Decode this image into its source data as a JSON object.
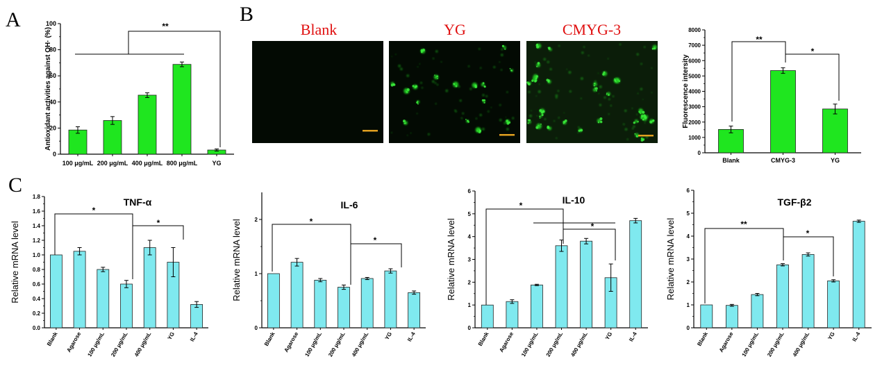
{
  "panel_letters": {
    "a": "A",
    "b": "B",
    "c": "C"
  },
  "micrograph_titles": [
    "Blank",
    "YG",
    "CMYG-3"
  ],
  "colors": {
    "green_bar": "#1fe61f",
    "cyan_bar": "#7fe9ef",
    "title_red": "#e01010",
    "scale_bar": "#e0a020",
    "micrograph_bg": "#030a03",
    "cell_glow": "#22c822"
  },
  "chart_data": [
    {
      "id": "A",
      "type": "bar",
      "categories": [
        "100 μg/mL",
        "200 μg/mL",
        "400 μg/mL",
        "800 μg/mL",
        "YG"
      ],
      "values": [
        18.5,
        25.8,
        45.2,
        68.8,
        3.2
      ],
      "errors": [
        2.5,
        3.0,
        1.8,
        1.8,
        0.8
      ],
      "ylabel": "Antioxidant activities against OH· (%)",
      "ylim": [
        0,
        100
      ],
      "yticks": [
        0,
        20,
        40,
        60,
        80,
        100
      ],
      "significance": [
        {
          "label": "**"
        }
      ]
    },
    {
      "id": "B-right",
      "type": "bar",
      "categories": [
        "Blank",
        "CMYG-3",
        "YG"
      ],
      "values": [
        1520,
        5350,
        2850
      ],
      "errors": [
        220,
        180,
        320
      ],
      "ylabel": "Fluorescence intersity",
      "ylim": [
        0,
        8000
      ],
      "yticks": [
        0,
        1000,
        2000,
        3000,
        4000,
        5000,
        6000,
        7000,
        8000
      ],
      "significance": [
        {
          "label": "**"
        },
        {
          "label": "*"
        }
      ]
    },
    {
      "id": "C1",
      "type": "bar",
      "title": "TNF-α",
      "categories": [
        "Blank",
        "Agarose",
        "100 μg/mL",
        "200 μg/mL",
        "400 μg/mL",
        "YG",
        "IL-4"
      ],
      "values": [
        1.0,
        1.05,
        0.8,
        0.6,
        1.1,
        0.9,
        0.32
      ],
      "errors": [
        0.0,
        0.05,
        0.03,
        0.05,
        0.1,
        0.2,
        0.04
      ],
      "ylabel": "Relative mRNA level",
      "ylim": [
        0,
        1.8
      ],
      "yticks": [
        0.0,
        0.2,
        0.4,
        0.6,
        0.8,
        1.0,
        1.2,
        1.4,
        1.6,
        1.8
      ],
      "significance": [
        {
          "label": "*"
        },
        {
          "label": "*"
        }
      ]
    },
    {
      "id": "C2",
      "type": "bar",
      "title": "IL-6",
      "categories": [
        "Blank",
        "Agarose",
        "100 μg/mL",
        "200 μg/mL",
        "400 μg/mL",
        "YG",
        "IL-4"
      ],
      "values": [
        1.0,
        1.21,
        0.88,
        0.75,
        0.91,
        1.05,
        0.65
      ],
      "errors": [
        0.0,
        0.07,
        0.03,
        0.04,
        0.02,
        0.04,
        0.03
      ],
      "ylabel": "Relative mRNA level",
      "ylim": [
        0,
        2.5
      ],
      "yticks": [
        0,
        1,
        2
      ],
      "significance": [
        {
          "label": "*"
        },
        {
          "label": "*"
        }
      ]
    },
    {
      "id": "C3",
      "type": "bar",
      "title": "IL-10",
      "categories": [
        "Blank",
        "Agarose",
        "100 μg/mL",
        "200 μg/mL",
        "400 μg/mL",
        "YG",
        "IL-4"
      ],
      "values": [
        1.0,
        1.15,
        1.88,
        3.6,
        3.8,
        2.2,
        4.7
      ],
      "errors": [
        0.0,
        0.08,
        0.03,
        0.25,
        0.12,
        0.6,
        0.1
      ],
      "ylabel": "Relative mRNA level",
      "ylim": [
        0,
        6
      ],
      "yticks": [
        0,
        1,
        2,
        3,
        4,
        5,
        6
      ],
      "significance": [
        {
          "label": "*"
        },
        {
          "label": "*"
        }
      ]
    },
    {
      "id": "C4",
      "type": "bar",
      "title": "TGF-β2",
      "categories": [
        "Blank",
        "Agarose",
        "100 μg/mL",
        "200 μg/mL",
        "400 μg/mL",
        "YG",
        "IL-4"
      ],
      "values": [
        1.0,
        0.98,
        1.45,
        2.75,
        3.2,
        2.05,
        4.65
      ],
      "errors": [
        0.0,
        0.04,
        0.05,
        0.05,
        0.07,
        0.05,
        0.05
      ],
      "ylabel": "Relative mRNA level",
      "ylim": [
        0,
        6
      ],
      "yticks": [
        0,
        1,
        2,
        3,
        4,
        5,
        6
      ],
      "significance": [
        {
          "label": "**"
        },
        {
          "label": "*"
        }
      ]
    }
  ]
}
